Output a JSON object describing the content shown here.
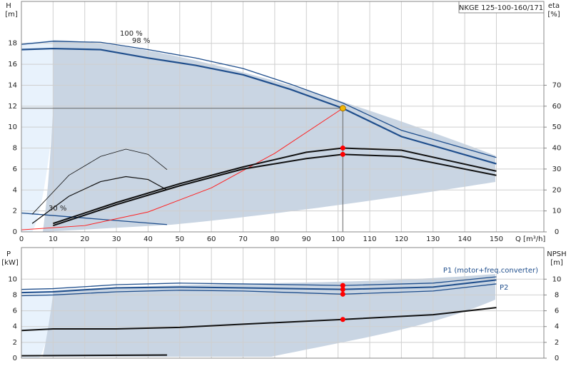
{
  "chart_data": [
    {
      "type": "line",
      "title": "NKGE 125-100-160/171",
      "y_label": "H",
      "y_unit": "[m]",
      "y2_label": "eta",
      "y2_unit": "[%]",
      "x_label": "Q [m³/h]",
      "annotations": [
        "100 %",
        "98 %",
        "30 %"
      ],
      "xlim": [
        0,
        165
      ],
      "xticks": [
        0,
        10,
        20,
        30,
        40,
        50,
        60,
        70,
        80,
        90,
        100,
        110,
        120,
        130,
        140,
        150
      ],
      "ylim": [
        0,
        22
      ],
      "yticks": [
        0,
        2,
        4,
        6,
        8,
        10,
        12,
        14,
        16,
        18
      ],
      "y2lim": [
        0,
        110
      ],
      "y2ticks": [
        0,
        10,
        20,
        30,
        40,
        50,
        60,
        70
      ],
      "grid": true,
      "duty_point": {
        "x": 101.5,
        "y": 11.8,
        "color": "#f2b705"
      },
      "series": [
        {
          "color": "#1f4e8c",
          "width": 1.3,
          "x": [
            0,
            10,
            25,
            40,
            55,
            70,
            85,
            101.5,
            120,
            150
          ],
          "values": [
            17.9,
            18.2,
            18.1,
            17.4,
            16.6,
            15.6,
            14.1,
            12.3,
            9.7,
            7.1
          ]
        },
        {
          "color": "#1f4e8c",
          "width": 2.2,
          "x": [
            0,
            10,
            25,
            40,
            55,
            70,
            85,
            101.5,
            120,
            150
          ],
          "values": [
            17.4,
            17.5,
            17.4,
            16.6,
            15.9,
            15.0,
            13.6,
            11.8,
            9.1,
            6.5
          ]
        },
        {
          "color": "#1f4e8c",
          "width": 1.3,
          "x": [
            0,
            46
          ],
          "values": [
            1.8,
            0.7
          ]
        },
        {
          "color": "#ff2020",
          "width": 1,
          "x": [
            0,
            20,
            40,
            60,
            80,
            101.5
          ],
          "values": [
            0.2,
            0.6,
            1.9,
            4.2,
            7.5,
            11.8
          ]
        },
        {
          "color": "#111111",
          "width": 2,
          "axis": "y2",
          "marker_color": "#ff0000",
          "x": [
            10,
            30,
            50,
            70,
            90,
            101.5,
            120,
            150
          ],
          "values": [
            4,
            14,
            23,
            31,
            38,
            40,
            39,
            29
          ]
        },
        {
          "color": "#111111",
          "width": 2,
          "axis": "y2",
          "marker_color": "#ff0000",
          "x": [
            10,
            30,
            50,
            70,
            90,
            101.5,
            120,
            150
          ],
          "values": [
            3,
            13,
            22,
            30,
            35,
            37,
            36,
            27
          ]
        },
        {
          "color": "#111111",
          "width": 0.8,
          "axis": "y2",
          "x": [
            3.4,
            15,
            25,
            33,
            40,
            46
          ],
          "values": [
            8.4,
            27,
            36,
            39.5,
            37,
            29.7
          ]
        },
        {
          "color": "#111111",
          "width": 1.2,
          "axis": "y2",
          "x": [
            3.4,
            15,
            25,
            33,
            40,
            46
          ],
          "values": [
            4,
            17,
            24,
            26.4,
            25,
            20
          ]
        }
      ]
    },
    {
      "type": "line",
      "y_label": "P",
      "y_unit": "[kW]",
      "y2_label": "NPSH",
      "y2_unit": "[m]",
      "xlim": [
        0,
        165
      ],
      "ylim": [
        0,
        14
      ],
      "yticks": [
        0,
        2,
        4,
        6,
        8,
        10
      ],
      "y2lim": [
        0,
        14
      ],
      "y2ticks": [
        0,
        2,
        4,
        6,
        8,
        10
      ],
      "grid": true,
      "series": [
        {
          "name": "P1 (motor+freq.converter)",
          "color": "#1f4e8c",
          "width": 1.3,
          "marker_color": "#ff0000",
          "x": [
            0,
            10,
            30,
            50,
            70,
            101.5,
            130,
            150
          ],
          "values": [
            8.7,
            8.8,
            9.3,
            9.5,
            9.4,
            9.2,
            9.5,
            10.3
          ]
        },
        {
          "color": "#1f4e8c",
          "width": 2,
          "marker_color": "#ff0000",
          "x": [
            0,
            10,
            30,
            50,
            70,
            101.5,
            130,
            150
          ],
          "values": [
            8.3,
            8.4,
            8.9,
            9.0,
            8.9,
            8.7,
            9.0,
            9.9
          ]
        },
        {
          "name": "P2",
          "color": "#1f4e8c",
          "width": 1.3,
          "marker_color": "#ff0000",
          "x": [
            0,
            10,
            30,
            50,
            70,
            101.5,
            130,
            150
          ],
          "values": [
            7.9,
            8.0,
            8.4,
            8.6,
            8.5,
            8.1,
            8.5,
            9.4
          ]
        },
        {
          "color": "#111111",
          "width": 2,
          "axis": "y2",
          "marker_color": "#ff0000",
          "x": [
            0,
            10,
            30,
            50,
            70,
            101.5,
            130,
            150
          ],
          "values": [
            3.5,
            3.7,
            3.7,
            3.9,
            4.3,
            4.9,
            5.5,
            6.4
          ]
        },
        {
          "color": "#111111",
          "width": 2,
          "x": [
            0,
            46
          ],
          "values": [
            0.3,
            0.4
          ]
        }
      ]
    }
  ]
}
